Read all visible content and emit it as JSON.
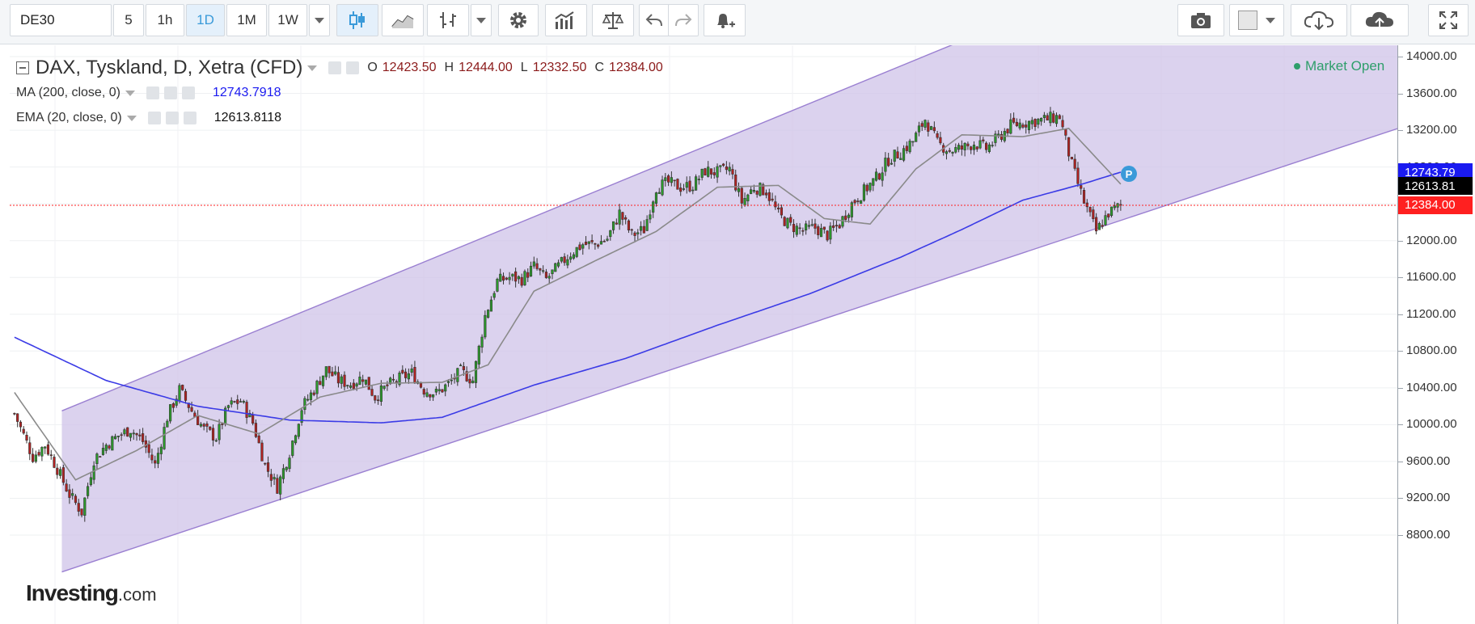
{
  "toolbar": {
    "symbol": "DE30",
    "intervals": [
      "5",
      "1h",
      "1D",
      "1M",
      "1W"
    ],
    "active_interval": "1D"
  },
  "legend": {
    "title": "DAX, Tyskland, D, Xetra (CFD)",
    "ohlc": {
      "O": "12423.50",
      "H": "12444.00",
      "L": "12332.50",
      "C": "12384.00"
    },
    "ma_label": "MA (200, close, 0)",
    "ma_value": "12743.7918",
    "ema_label": "EMA (20, close, 0)",
    "ema_value": "12613.8118"
  },
  "market_status": "Market Open",
  "price_tags": {
    "ma": "12743.79",
    "ema": "12613.81",
    "last": "12384.00"
  },
  "marker_label": "P",
  "watermark": {
    "brand": "Investing",
    "suffix": ".com"
  },
  "colors": {
    "up": "#2c9b2c",
    "down": "#b22222",
    "ma": "#3b3be6",
    "ema": "#8a8a8a",
    "channel_fill": "#cfc3e8",
    "channel_line": "#9a7fd1",
    "last_price": "#ff2020",
    "ma_tag": "#1a1af0",
    "ema_tag": "#000000"
  },
  "chart_data": {
    "type": "candlestick",
    "y_axis": {
      "ticks": [
        14000,
        13600,
        13200,
        12800,
        12400,
        12000,
        11600,
        11200,
        10800,
        10400,
        10000,
        9600,
        9200,
        8800
      ],
      "tick_labels": [
        "14000.00",
        "13600.00",
        "13200.00",
        "12800.00",
        "12400.00",
        "12000.00",
        "11600.00",
        "11200.00",
        "10800.00",
        "10400.00",
        "10000.00",
        "9600.00",
        "9200.00",
        "8800.00"
      ],
      "range": [
        8400,
        14100
      ]
    },
    "last_price": 12384.0,
    "ma_value": 12743.79,
    "ema_value": 12613.81,
    "bar_count": 380,
    "close_path": [
      [
        0,
        10120
      ],
      [
        6,
        9650
      ],
      [
        10,
        9780
      ],
      [
        14,
        9520
      ],
      [
        18,
        9240
      ],
      [
        22,
        9050
      ],
      [
        26,
        9620
      ],
      [
        30,
        9780
      ],
      [
        34,
        9880
      ],
      [
        38,
        9950
      ],
      [
        42,
        9820
      ],
      [
        46,
        9560
      ],
      [
        50,
        10080
      ],
      [
        54,
        10380
      ],
      [
        58,
        10150
      ],
      [
        62,
        9950
      ],
      [
        66,
        9860
      ],
      [
        70,
        10200
      ],
      [
        74,
        10260
      ],
      [
        78,
        10020
      ],
      [
        82,
        9560
      ],
      [
        86,
        9320
      ],
      [
        90,
        9700
      ],
      [
        94,
        10180
      ],
      [
        98,
        10380
      ],
      [
        102,
        10600
      ],
      [
        106,
        10480
      ],
      [
        110,
        10440
      ],
      [
        114,
        10520
      ],
      [
        118,
        10300
      ],
      [
        122,
        10420
      ],
      [
        126,
        10500
      ],
      [
        130,
        10560
      ],
      [
        134,
        10380
      ],
      [
        138,
        10340
      ],
      [
        142,
        10440
      ],
      [
        146,
        10580
      ],
      [
        150,
        10480
      ],
      [
        154,
        11180
      ],
      [
        158,
        11560
      ],
      [
        162,
        11600
      ],
      [
        166,
        11580
      ],
      [
        170,
        11720
      ],
      [
        174,
        11580
      ],
      [
        178,
        11720
      ],
      [
        182,
        11860
      ],
      [
        186,
        11960
      ],
      [
        190,
        11960
      ],
      [
        194,
        12020
      ],
      [
        198,
        12300
      ],
      [
        202,
        12060
      ],
      [
        206,
        12120
      ],
      [
        210,
        12580
      ],
      [
        214,
        12630
      ],
      [
        218,
        12580
      ],
      [
        222,
        12600
      ],
      [
        226,
        12760
      ],
      [
        230,
        12740
      ],
      [
        234,
        12780
      ],
      [
        238,
        12420
      ],
      [
        242,
        12580
      ],
      [
        246,
        12540
      ],
      [
        250,
        12280
      ],
      [
        254,
        12160
      ],
      [
        258,
        12110
      ],
      [
        262,
        12140
      ],
      [
        266,
        12060
      ],
      [
        270,
        12180
      ],
      [
        274,
        12400
      ],
      [
        278,
        12540
      ],
      [
        282,
        12680
      ],
      [
        286,
        12880
      ],
      [
        290,
        12960
      ],
      [
        294,
        13080
      ],
      [
        298,
        13320
      ],
      [
        302,
        13060
      ],
      [
        306,
        12980
      ],
      [
        310,
        13000
      ],
      [
        314,
        13060
      ],
      [
        318,
        13000
      ],
      [
        322,
        13120
      ],
      [
        326,
        13250
      ],
      [
        330,
        13280
      ],
      [
        334,
        13300
      ],
      [
        338,
        13320
      ],
      [
        342,
        13350
      ],
      [
        346,
        12820
      ],
      [
        350,
        12420
      ],
      [
        354,
        12100
      ],
      [
        358,
        12300
      ],
      [
        362,
        12384
      ]
    ],
    "ma200_path": [
      [
        0,
        10950
      ],
      [
        30,
        10480
      ],
      [
        60,
        10200
      ],
      [
        90,
        10050
      ],
      [
        120,
        10020
      ],
      [
        140,
        10080
      ],
      [
        170,
        10430
      ],
      [
        200,
        10720
      ],
      [
        230,
        11080
      ],
      [
        260,
        11420
      ],
      [
        290,
        11820
      ],
      [
        310,
        12120
      ],
      [
        330,
        12440
      ],
      [
        350,
        12620
      ],
      [
        362,
        12744
      ]
    ],
    "ema20_path": [
      [
        0,
        10350
      ],
      [
        20,
        9400
      ],
      [
        40,
        9720
      ],
      [
        60,
        10100
      ],
      [
        80,
        9900
      ],
      [
        100,
        10300
      ],
      [
        120,
        10450
      ],
      [
        140,
        10460
      ],
      [
        155,
        10650
      ],
      [
        170,
        11450
      ],
      [
        190,
        11780
      ],
      [
        210,
        12100
      ],
      [
        230,
        12580
      ],
      [
        250,
        12600
      ],
      [
        265,
        12240
      ],
      [
        280,
        12180
      ],
      [
        295,
        12780
      ],
      [
        310,
        13150
      ],
      [
        330,
        13130
      ],
      [
        345,
        13220
      ],
      [
        362,
        12614
      ]
    ],
    "channel": {
      "upper": [
        [
          16,
          10150
        ],
        [
          309,
          14150
        ]
      ],
      "lower": [
        [
          16,
          8400
        ],
        [
          368,
          12280
        ]
      ]
    },
    "legend_placement": "top-left"
  }
}
